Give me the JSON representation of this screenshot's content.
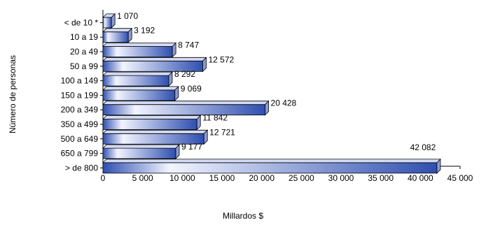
{
  "chart_data": {
    "type": "bar",
    "orientation": "horizontal",
    "categories": [
      "< de 10 *",
      "10 a 19",
      "20 a 49",
      "50 a 99",
      "100 a 149",
      "150 a 199",
      "200 a 349",
      "350 a 499",
      "500 a 649",
      "650 a 799",
      "> de 800"
    ],
    "values": [
      1070,
      3192,
      8747,
      12572,
      8292,
      9069,
      20428,
      11842,
      12721,
      9177,
      42082
    ],
    "value_labels": [
      "1 070",
      "3 192",
      "8 747",
      "12 572",
      "8 292",
      "9 069",
      "20 428",
      "11 842",
      "12 721",
      "9 177",
      "42 082"
    ],
    "xlabel": "Millardos $",
    "ylabel": "Número de personas",
    "xlim": [
      0,
      45000
    ],
    "xticks": [
      0,
      5000,
      10000,
      15000,
      20000,
      25000,
      30000,
      35000,
      40000,
      45000
    ],
    "xtick_labels": [
      "0",
      "5 000",
      "10 000",
      "15 000",
      "20 000",
      "25 000",
      "30 000",
      "35 000",
      "40 000",
      "45 000"
    ],
    "grid": false,
    "legend": "none",
    "colors": {
      "bar_dark": "#2f4fb0",
      "bar_light": "#f2f4ff",
      "bar_top": "#d2daf4",
      "bar_side": "#8c9bd2",
      "outline": "#000000"
    }
  }
}
